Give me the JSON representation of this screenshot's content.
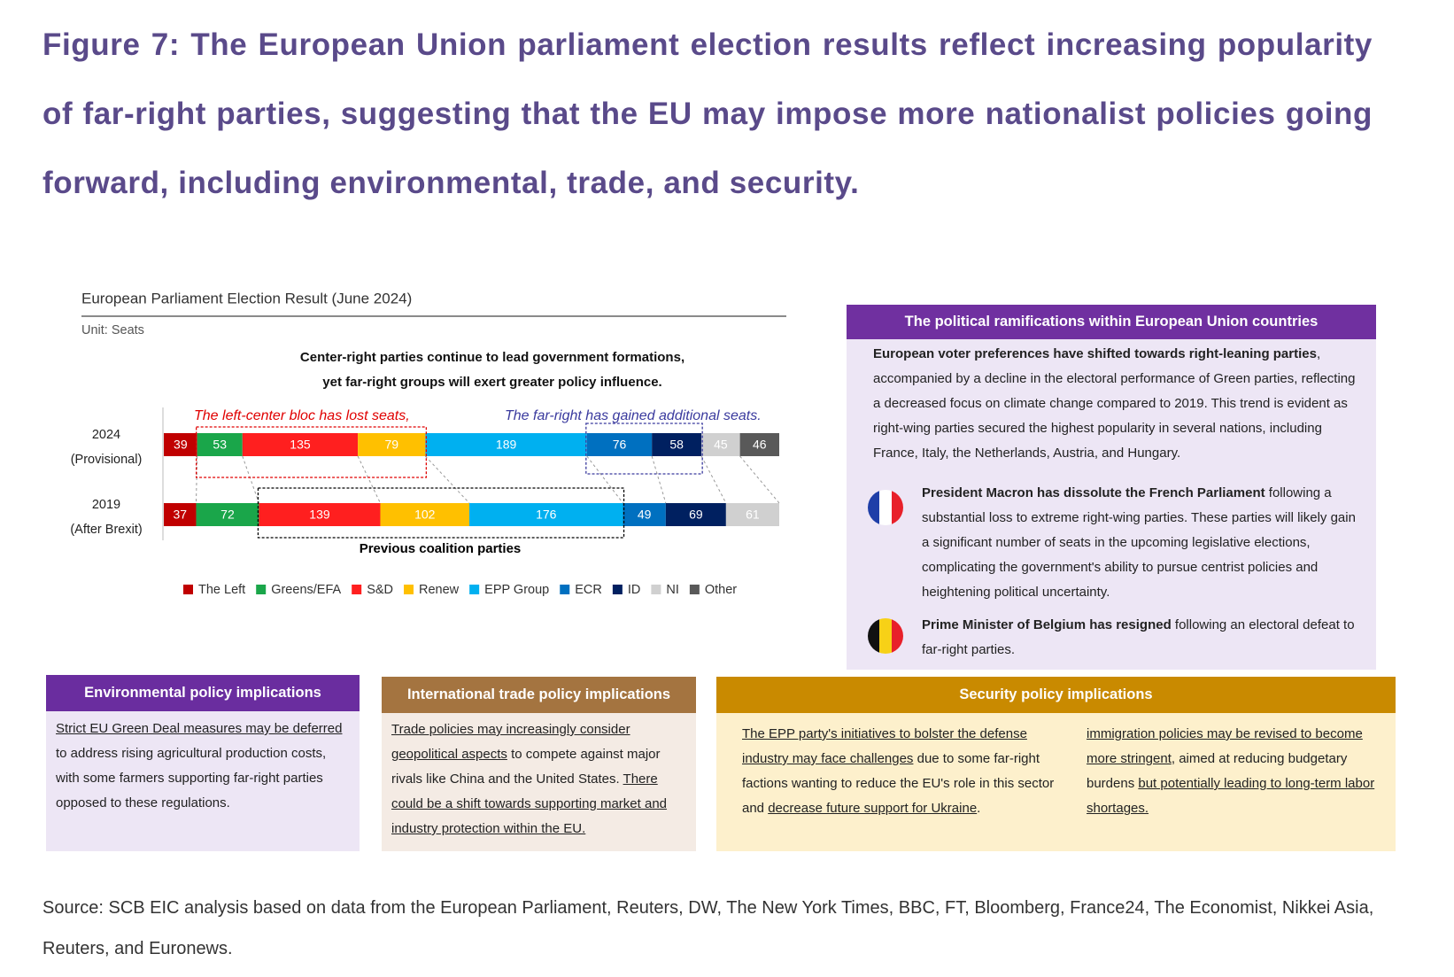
{
  "figure_title": "Figure 7: The European Union parliament election results reflect increasing popularity of far-right parties, suggesting that the EU may impose more nationalist policies going forward, including environmental, trade, and security.",
  "chart_data": {
    "type": "bar",
    "orientation": "horizontal",
    "stacked": true,
    "title": "European Parliament Election Result (June 2024)",
    "subtitle": "Unit: Seats",
    "annotation": [
      "Center-right parties continue to lead government formations,",
      "yet far-right groups will exert greater policy influence."
    ],
    "callouts": [
      {
        "text": "The left-center bloc has lost seats,",
        "color": "#e00000"
      },
      {
        "text": "The far-right has gained additional seats.",
        "color": "#3a3a9e"
      },
      {
        "text": "Previous coalition parties",
        "color": "#000000"
      }
    ],
    "categories": [
      [
        "2024",
        "(Provisional)"
      ],
      [
        "2019",
        "(After Brexit)"
      ]
    ],
    "series": [
      {
        "name": "The Left",
        "color": "#c00000",
        "values": [
          39,
          37
        ]
      },
      {
        "name": "Greens/EFA",
        "color": "#1aa64a",
        "values": [
          53,
          72
        ]
      },
      {
        "name": "S&D",
        "color": "#ff1f1f",
        "values": [
          135,
          139
        ]
      },
      {
        "name": "Renew",
        "color": "#ffc000",
        "values": [
          79,
          102
        ]
      },
      {
        "name": "EPP Group",
        "color": "#00b0f0",
        "values": [
          189,
          176
        ]
      },
      {
        "name": "ECR",
        "color": "#0070c0",
        "values": [
          76,
          49
        ]
      },
      {
        "name": "ID",
        "color": "#002060",
        "values": [
          58,
          69
        ]
      },
      {
        "name": "NI",
        "color": "#d0d0d0",
        "values": [
          45,
          61
        ]
      },
      {
        "name": "Other",
        "color": "#595959",
        "values": [
          46,
          null
        ]
      }
    ]
  },
  "ramifications": {
    "header": "The political ramifications within European Union countries",
    "intro": [
      {
        "text": "European voter preferences have shifted towards right-leaning parties",
        "bold": true
      },
      {
        "text": ", accompanied by a decline in the electoral performance of Green parties, reflecting a decreased focus on climate change compared to 2019. This trend is evident as right-wing parties secured the highest popularity in several nations, including France, Italy, the Netherlands, Austria, and Hungary."
      }
    ],
    "items": [
      [
        {
          "text": "President Macron has dissolute the French Parliament",
          "bold": true
        },
        {
          "text": " following a substantial loss to extreme right-wing parties. These parties will likely gain a significant number of seats in the upcoming legislative elections, complicating the government's ability to pursue centrist policies and heightening political uncertainty."
        }
      ],
      [
        {
          "text": "Prime Minister of Belgium has resigned",
          "bold": true
        },
        {
          "text": " following an electoral defeat to far-right parties."
        }
      ]
    ]
  },
  "environmental": {
    "header": "Environmental policy implications",
    "body": [
      {
        "text": "Strict EU Green Deal measures may be deferred",
        "underline": true
      },
      {
        "text": " to address rising agricultural production costs, with some farmers supporting far-right parties opposed to these regulations."
      }
    ]
  },
  "trade": {
    "header": "International trade policy implications",
    "body": [
      {
        "text": "Trade policies may increasingly consider geopolitical aspects",
        "underline": true
      },
      {
        "text": " to compete against major rivals like China and the United States. "
      },
      {
        "text": "There could be a shift towards supporting market and industry protection within the EU.",
        "underline": true
      }
    ]
  },
  "security": {
    "header": "Security policy implications",
    "columns": [
      [
        {
          "text": "The EPP party's initiatives to bolster the defense industry may face challenges",
          "underline": true
        },
        {
          "text": " due to some far-right factions wanting to reduce the EU's role in this sector and "
        },
        {
          "text": "decrease future support for Ukraine",
          "underline": true
        },
        {
          "text": "."
        }
      ],
      [
        {
          "text": "immigration policies may be revised to become more stringent",
          "underline": true
        },
        {
          "text": ", aimed at reducing budgetary burdens "
        },
        {
          "text": "but potentially leading to long-term labor shortages.",
          "underline": true
        }
      ]
    ]
  },
  "source": "Source: SCB EIC analysis based on data from the European Parliament, Reuters, DW, The New York Times, BBC, FT, Bloomberg, France24, The Economist, Nikkei Asia, Reuters, and Euronews."
}
